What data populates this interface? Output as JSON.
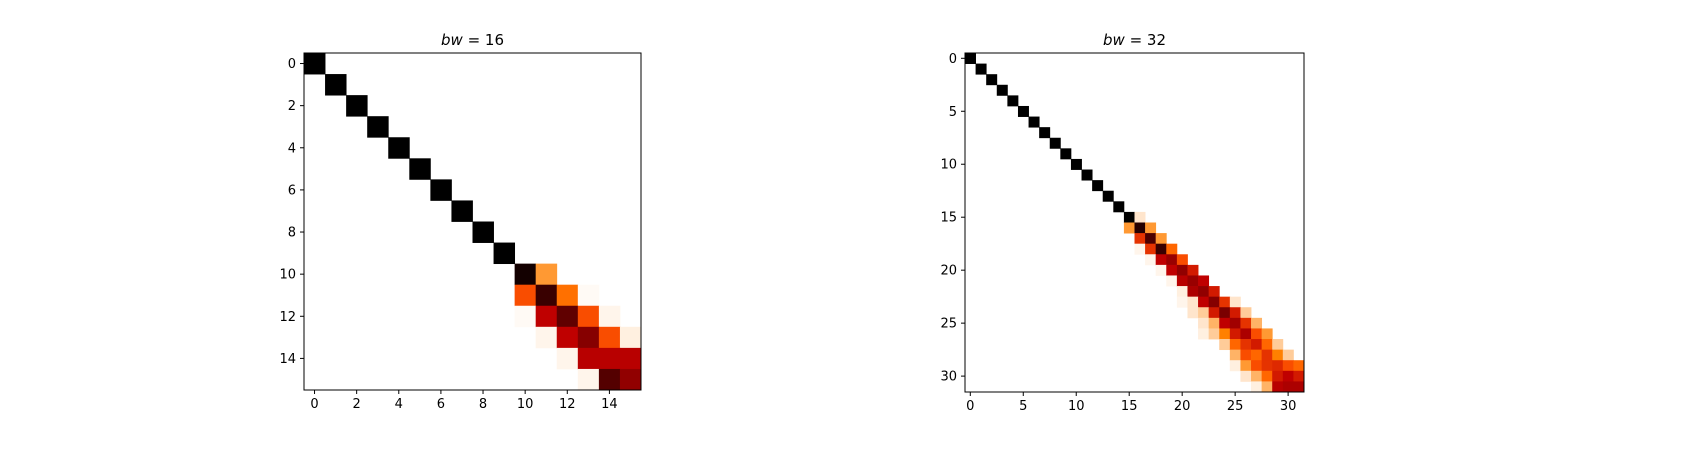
{
  "chart_data": [
    {
      "type": "heatmap",
      "title_var": "bw",
      "title_rest": " = 16",
      "n": 16,
      "colormap": "gist_heat_r",
      "grid": false,
      "xticks": [
        0,
        2,
        4,
        6,
        8,
        10,
        12,
        14
      ],
      "yticks": [
        0,
        2,
        4,
        6,
        8,
        10,
        12,
        14
      ],
      "values": [
        [
          1,
          0,
          0,
          0,
          0,
          0,
          0,
          0,
          0,
          0,
          0,
          0,
          0,
          0,
          0,
          0
        ],
        [
          0,
          1,
          0,
          0,
          0,
          0,
          0,
          0,
          0,
          0,
          0,
          0,
          0,
          0,
          0,
          0
        ],
        [
          0,
          0,
          1,
          0,
          0,
          0,
          0,
          0,
          0,
          0,
          0,
          0,
          0,
          0,
          0,
          0
        ],
        [
          0,
          0,
          0,
          1,
          0,
          0,
          0,
          0,
          0,
          0,
          0,
          0,
          0,
          0,
          0,
          0
        ],
        [
          0,
          0,
          0,
          0,
          1,
          0,
          0,
          0,
          0,
          0,
          0,
          0,
          0,
          0,
          0,
          0
        ],
        [
          0,
          0,
          0,
          0,
          0,
          1,
          0,
          0,
          0,
          0,
          0,
          0,
          0,
          0,
          0,
          0
        ],
        [
          0,
          0,
          0,
          0,
          0,
          0,
          1,
          0,
          0,
          0,
          0,
          0,
          0,
          0,
          0,
          0
        ],
        [
          0,
          0,
          0,
          0,
          0,
          0,
          0,
          1,
          0,
          0,
          0,
          0,
          0,
          0,
          0,
          0
        ],
        [
          0,
          0,
          0,
          0,
          0,
          0,
          0,
          0,
          1,
          0,
          0,
          0,
          0,
          0,
          0,
          0
        ],
        [
          0,
          0,
          0,
          0,
          0,
          0,
          0,
          0,
          0,
          1,
          0,
          0,
          0,
          0,
          0,
          0
        ],
        [
          0,
          0,
          0,
          0,
          0,
          0,
          0,
          0,
          0,
          0,
          0.95,
          0.2,
          0,
          0,
          0,
          0
        ],
        [
          0,
          0,
          0,
          0,
          0,
          0,
          0,
          0,
          0,
          0,
          0.35,
          0.85,
          0.28,
          0.01,
          0,
          0
        ],
        [
          0,
          0,
          0,
          0,
          0,
          0,
          0,
          0,
          0,
          0,
          0.01,
          0.5,
          0.75,
          0.35,
          0.02,
          0
        ],
        [
          0,
          0,
          0,
          0,
          0,
          0,
          0,
          0,
          0,
          0,
          0,
          0.02,
          0.5,
          0.65,
          0.35,
          0.03
        ],
        [
          0,
          0,
          0,
          0,
          0,
          0,
          0,
          0,
          0,
          0,
          0,
          0,
          0.02,
          0.52,
          0.52,
          0.52
        ],
        [
          0,
          0,
          0,
          0,
          0,
          0,
          0,
          0,
          0,
          0,
          0,
          0,
          0,
          0.02,
          0.78,
          0.62
        ]
      ]
    },
    {
      "type": "heatmap",
      "title_var": "bw",
      "title_rest": " = 32",
      "n": 32,
      "colormap": "gist_heat_r",
      "grid": false,
      "xticks": [
        0,
        5,
        10,
        15,
        20,
        25,
        30
      ],
      "yticks": [
        0,
        5,
        10,
        15,
        20,
        25,
        30
      ],
      "values_note_free": true,
      "diagonal": [
        1,
        1,
        1,
        1,
        1,
        1,
        1,
        1,
        1,
        1,
        1,
        1,
        1,
        1,
        1,
        1,
        0.9,
        0.8,
        0.85,
        0.6,
        0.62,
        0.6,
        0.62,
        0.65,
        0.68,
        0.58,
        0.55,
        0.45,
        0.4,
        0.42,
        0.5,
        0.55
      ],
      "band": [
        {
          "row": 15,
          "cols": [
            [
              16,
              0.05
            ]
          ]
        },
        {
          "row": 16,
          "cols": [
            [
              15,
              0.2
            ],
            [
              17,
              0.2
            ]
          ]
        },
        {
          "row": 17,
          "cols": [
            [
              16,
              0.4
            ],
            [
              18,
              0.2
            ]
          ]
        },
        {
          "row": 18,
          "cols": [
            [
              16,
              0.02
            ],
            [
              17,
              0.4
            ],
            [
              19,
              0.3
            ]
          ]
        },
        {
          "row": 19,
          "cols": [
            [
              17,
              0.02
            ],
            [
              18,
              0.5
            ],
            [
              20,
              0.35
            ]
          ]
        },
        {
          "row": 20,
          "cols": [
            [
              18,
              0.02
            ],
            [
              19,
              0.5
            ],
            [
              21,
              0.45
            ]
          ]
        },
        {
          "row": 21,
          "cols": [
            [
              19,
              0.02
            ],
            [
              20,
              0.52
            ],
            [
              22,
              0.5
            ]
          ]
        },
        {
          "row": 22,
          "cols": [
            [
              20,
              0.03
            ],
            [
              21,
              0.55
            ],
            [
              23,
              0.45
            ]
          ]
        },
        {
          "row": 23,
          "cols": [
            [
              20,
              0.02
            ],
            [
              21,
              0.05
            ],
            [
              22,
              0.5
            ],
            [
              24,
              0.4
            ],
            [
              25,
              0.05
            ]
          ]
        },
        {
          "row": 24,
          "cols": [
            [
              21,
              0.05
            ],
            [
              22,
              0.1
            ],
            [
              23,
              0.45
            ],
            [
              25,
              0.45
            ],
            [
              26,
              0.1
            ]
          ]
        },
        {
          "row": 25,
          "cols": [
            [
              22,
              0.05
            ],
            [
              23,
              0.15
            ],
            [
              24,
              0.5
            ],
            [
              26,
              0.4
            ],
            [
              27,
              0.15
            ]
          ]
        },
        {
          "row": 26,
          "cols": [
            [
              22,
              0.03
            ],
            [
              23,
              0.1
            ],
            [
              24,
              0.25
            ],
            [
              25,
              0.45
            ],
            [
              27,
              0.35
            ],
            [
              28,
              0.2
            ]
          ]
        },
        {
          "row": 27,
          "cols": [
            [
              24,
              0.1
            ],
            [
              25,
              0.3
            ],
            [
              26,
              0.4
            ],
            [
              28,
              0.3
            ],
            [
              29,
              0.1
            ]
          ]
        },
        {
          "row": 28,
          "cols": [
            [
              25,
              0.15
            ],
            [
              26,
              0.35
            ],
            [
              27,
              0.3
            ],
            [
              29,
              0.25
            ],
            [
              30,
              0.1
            ]
          ]
        },
        {
          "row": 29,
          "cols": [
            [
              25,
              0.03
            ],
            [
              26,
              0.2
            ],
            [
              27,
              0.35
            ],
            [
              28,
              0.4
            ],
            [
              30,
              0.35
            ],
            [
              31,
              0.3
            ]
          ]
        },
        {
          "row": 30,
          "cols": [
            [
              26,
              0.05
            ],
            [
              27,
              0.15
            ],
            [
              28,
              0.3
            ],
            [
              29,
              0.45
            ],
            [
              31,
              0.45
            ]
          ]
        },
        {
          "row": 31,
          "cols": [
            [
              27,
              0.03
            ],
            [
              28,
              0.15
            ],
            [
              29,
              0.52
            ],
            [
              30,
              0.55
            ]
          ]
        }
      ]
    }
  ]
}
